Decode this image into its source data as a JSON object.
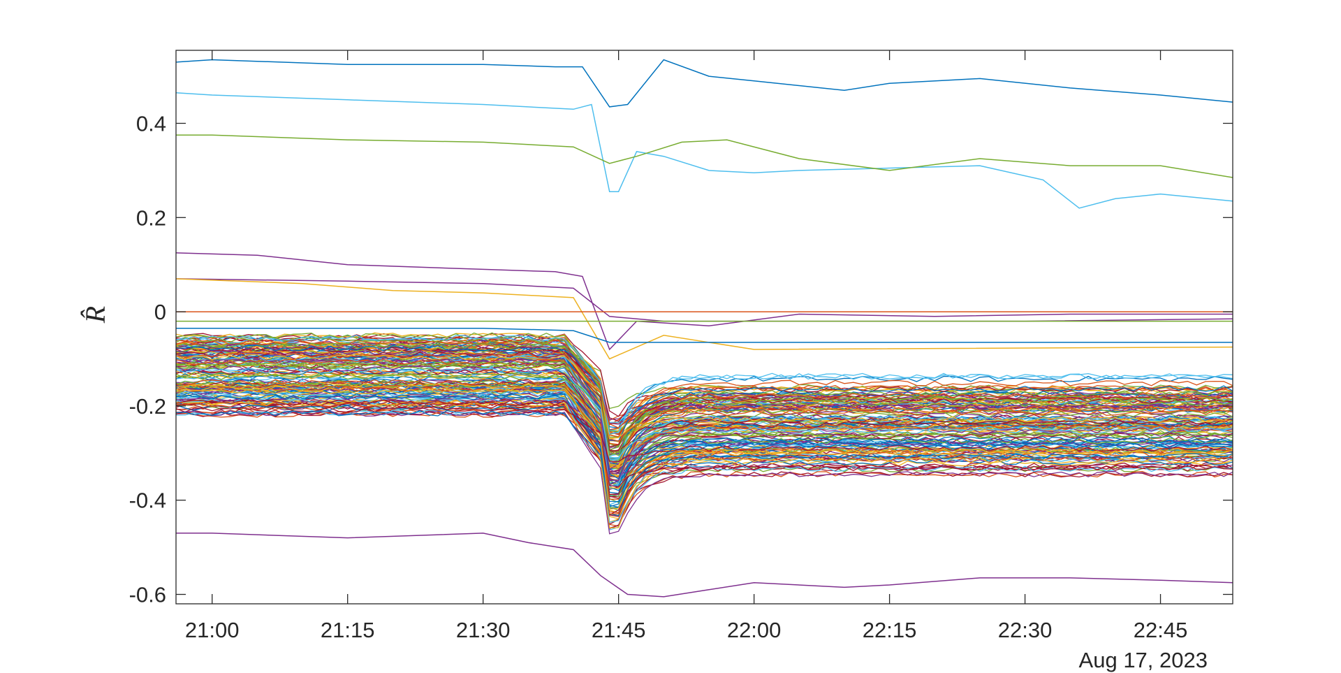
{
  "chart_data": {
    "type": "line",
    "title": "",
    "xlabel": "",
    "ylabel": "R̂",
    "date_label": "Aug 17, 2023",
    "x_ticks": [
      "21:00",
      "21:15",
      "21:30",
      "21:45",
      "22:00",
      "22:15",
      "22:30",
      "22:45"
    ],
    "x_range": [
      "20:56",
      "22:53"
    ],
    "y_ticks": [
      "-0.6",
      "-0.4",
      "-0.2",
      "0",
      "0.2",
      "0.4"
    ],
    "ylim": [
      -0.62,
      0.555
    ],
    "grid": false,
    "legend": "none",
    "colors": [
      "#0072BD",
      "#D95319",
      "#EDB120",
      "#7E2F8E",
      "#77AC30",
      "#4DBEEE",
      "#A2142F"
    ],
    "highlighted_series": [
      {
        "color": "#0072BD",
        "points": [
          [
            "20:56",
            0.53
          ],
          [
            "21:00",
            0.535
          ],
          [
            "21:15",
            0.525
          ],
          [
            "21:30",
            0.525
          ],
          [
            "21:38",
            0.52
          ],
          [
            "21:41",
            0.52
          ],
          [
            "21:44",
            0.435
          ],
          [
            "21:46",
            0.44
          ],
          [
            "21:50",
            0.535
          ],
          [
            "21:55",
            0.5
          ],
          [
            "22:00",
            0.49
          ],
          [
            "22:10",
            0.47
          ],
          [
            "22:15",
            0.485
          ],
          [
            "22:25",
            0.495
          ],
          [
            "22:35",
            0.475
          ],
          [
            "22:45",
            0.46
          ],
          [
            "22:53",
            0.445
          ]
        ]
      },
      {
        "color": "#4DBEEE",
        "points": [
          [
            "20:56",
            0.465
          ],
          [
            "21:00",
            0.46
          ],
          [
            "21:15",
            0.45
          ],
          [
            "21:30",
            0.44
          ],
          [
            "21:40",
            0.43
          ],
          [
            "21:42",
            0.44
          ],
          [
            "21:44",
            0.255
          ],
          [
            "21:45",
            0.255
          ],
          [
            "21:47",
            0.34
          ],
          [
            "21:50",
            0.33
          ],
          [
            "21:55",
            0.3
          ],
          [
            "22:00",
            0.295
          ],
          [
            "22:05",
            0.3
          ],
          [
            "22:15",
            0.305
          ],
          [
            "22:25",
            0.31
          ],
          [
            "22:32",
            0.28
          ],
          [
            "22:36",
            0.22
          ],
          [
            "22:40",
            0.24
          ],
          [
            "22:45",
            0.25
          ],
          [
            "22:53",
            0.235
          ]
        ]
      },
      {
        "color": "#77AC30",
        "points": [
          [
            "20:56",
            0.375
          ],
          [
            "21:00",
            0.375
          ],
          [
            "21:15",
            0.365
          ],
          [
            "21:30",
            0.36
          ],
          [
            "21:40",
            0.35
          ],
          [
            "21:44",
            0.315
          ],
          [
            "21:47",
            0.33
          ],
          [
            "21:52",
            0.36
          ],
          [
            "21:57",
            0.365
          ],
          [
            "22:05",
            0.325
          ],
          [
            "22:15",
            0.3
          ],
          [
            "22:25",
            0.325
          ],
          [
            "22:35",
            0.31
          ],
          [
            "22:45",
            0.31
          ],
          [
            "22:53",
            0.285
          ]
        ]
      },
      {
        "color": "#7E2F8E",
        "points": [
          [
            "20:56",
            0.125
          ],
          [
            "21:05",
            0.12
          ],
          [
            "21:15",
            0.1
          ],
          [
            "21:30",
            0.09
          ],
          [
            "21:38",
            0.085
          ],
          [
            "21:41",
            0.075
          ],
          [
            "21:44",
            -0.08
          ],
          [
            "21:47",
            -0.02
          ],
          [
            "21:55",
            -0.03
          ],
          [
            "22:05",
            -0.005
          ],
          [
            "22:20",
            -0.01
          ],
          [
            "22:35",
            -0.005
          ],
          [
            "22:53",
            -0.005
          ]
        ]
      },
      {
        "color": "#7E2F8E",
        "points": [
          [
            "20:56",
            0.07
          ],
          [
            "21:15",
            0.065
          ],
          [
            "21:30",
            0.06
          ],
          [
            "21:40",
            0.05
          ],
          [
            "21:44",
            -0.01
          ],
          [
            "21:50",
            -0.02
          ],
          [
            "22:05",
            -0.02
          ],
          [
            "22:30",
            -0.02
          ],
          [
            "22:53",
            -0.015
          ]
        ]
      },
      {
        "color": "#EDB120",
        "points": [
          [
            "20:56",
            0.07
          ],
          [
            "21:10",
            0.06
          ],
          [
            "21:20",
            0.045
          ],
          [
            "21:30",
            0.04
          ],
          [
            "21:40",
            0.03
          ],
          [
            "21:44",
            -0.1
          ],
          [
            "21:50",
            -0.05
          ],
          [
            "22:00",
            -0.08
          ],
          [
            "22:53",
            -0.075
          ]
        ]
      },
      {
        "color": "#D95319",
        "points": [
          [
            "20:56",
            0.0
          ],
          [
            "22:53",
            0.0
          ]
        ]
      },
      {
        "color": "#77AC30",
        "points": [
          [
            "20:56",
            -0.02
          ],
          [
            "22:53",
            -0.02
          ]
        ]
      },
      {
        "color": "#0072BD",
        "points": [
          [
            "20:56",
            -0.035
          ],
          [
            "21:30",
            -0.035
          ],
          [
            "21:40",
            -0.04
          ],
          [
            "21:44",
            -0.065
          ],
          [
            "22:00",
            -0.065
          ],
          [
            "22:53",
            -0.065
          ]
        ]
      },
      {
        "color": "#7E2F8E",
        "points": [
          [
            "20:56",
            -0.47
          ],
          [
            "21:00",
            -0.47
          ],
          [
            "21:15",
            -0.48
          ],
          [
            "21:30",
            -0.47
          ],
          [
            "21:35",
            -0.49
          ],
          [
            "21:40",
            -0.505
          ],
          [
            "21:43",
            -0.56
          ],
          [
            "21:46",
            -0.6
          ],
          [
            "21:50",
            -0.605
          ],
          [
            "21:55",
            -0.59
          ],
          [
            "22:00",
            -0.575
          ],
          [
            "22:10",
            -0.585
          ],
          [
            "22:15",
            -0.58
          ],
          [
            "22:25",
            -0.565
          ],
          [
            "22:35",
            -0.565
          ],
          [
            "22:45",
            -0.57
          ],
          [
            "22:53",
            -0.575
          ]
        ]
      }
    ],
    "bundle_series": {
      "count": 150,
      "baseline_before_drop_range": [
        -0.22,
        -0.05
      ],
      "drop_time": "21:45",
      "drop_minimum_range": [
        -0.47,
        -0.14
      ],
      "level_after_drop_range": [
        -0.345,
        -0.08
      ],
      "colors_cycle": [
        "#0072BD",
        "#D95319",
        "#EDB120",
        "#7E2F8E",
        "#77AC30",
        "#4DBEEE",
        "#A2142F"
      ]
    }
  }
}
